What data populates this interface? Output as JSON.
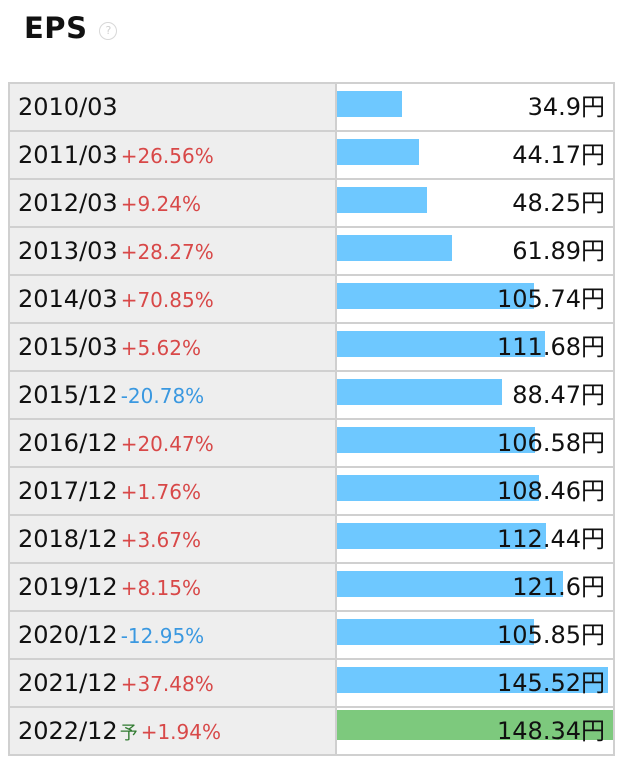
{
  "header": {
    "title": "EPS",
    "help_icon": "question-circle-icon"
  },
  "colors": {
    "bar": "#6ec8ff",
    "forecast_bar": "#7dc97d",
    "increase": "#d84848",
    "decrease": "#3a98e0",
    "forecast_mark": "#2f7a2f"
  },
  "forecast_mark": "予",
  "chart_data": {
    "type": "bar",
    "orientation": "horizontal",
    "title": "EPS",
    "categories": [
      "2010/03",
      "2011/03",
      "2012/03",
      "2013/03",
      "2014/03",
      "2015/03",
      "2015/12",
      "2016/12",
      "2017/12",
      "2018/12",
      "2019/12",
      "2020/12",
      "2021/12",
      "2022/12"
    ],
    "values": [
      34.9,
      44.17,
      48.25,
      61.89,
      105.74,
      111.68,
      88.47,
      106.58,
      108.46,
      112.44,
      121.6,
      105.85,
      145.52,
      148.34
    ],
    "value_labels": [
      "34.9円",
      "44.17円",
      "48.25円",
      "61.89円",
      "105.74円",
      "111.68円",
      "88.47円",
      "106.58円",
      "108.46円",
      "112.44円",
      "121.6円",
      "105.85円",
      "145.52円",
      "148.34円"
    ],
    "changes": [
      "",
      "+26.56%",
      "+9.24%",
      "+28.27%",
      "+70.85%",
      "+5.62%",
      "-20.78%",
      "+20.47%",
      "+1.76%",
      "+3.67%",
      "+8.15%",
      "-12.95%",
      "+37.48%",
      "+1.94%"
    ],
    "forecast": [
      false,
      false,
      false,
      false,
      false,
      false,
      false,
      false,
      false,
      false,
      false,
      false,
      false,
      true
    ],
    "xlim": [
      0,
      148.34
    ]
  }
}
